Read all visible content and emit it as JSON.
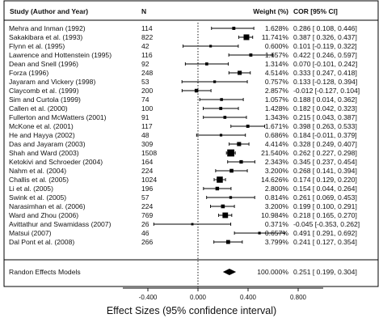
{
  "headers": {
    "study": "Study (Author and Year)",
    "n": "N",
    "weight": "Weight (%)",
    "cor": "COR [95% CI]"
  },
  "axis": {
    "xlabel": "Effect Sizes (95% confidence interval)",
    "ticks": [
      "-0.400",
      "0.000",
      "0.400",
      "0.800"
    ]
  },
  "chart_data": {
    "type": "forest",
    "xlim": [
      -0.6,
      1.0
    ],
    "xlabel": "Effect Sizes (95% confidence interval)",
    "grid": false,
    "reference_line": 0.0,
    "studies": [
      {
        "study": "Mehra and Inman (1992)",
        "n": "114",
        "weight": "1.628%",
        "ci_text": "0.286 [ 0.108, 0.446]",
        "cor": 0.286,
        "lo": 0.108,
        "hi": 0.446,
        "w": 1.628
      },
      {
        "study": "Sakakibara et al. (1993)",
        "n": "822",
        "weight": "11.741%",
        "ci_text": "0.387 [ 0.326, 0.437]",
        "cor": 0.387,
        "lo": 0.326,
        "hi": 0.437,
        "w": 11.741
      },
      {
        "study": "Flynn et al. (1995)",
        "n": "42",
        "weight": "0.600%",
        "ci_text": "0.101 [-0.119, 0.322]",
        "cor": 0.101,
        "lo": -0.119,
        "hi": 0.322,
        "w": 0.6
      },
      {
        "study": "Lawrence and Hottenstein (1995)",
        "n": "116",
        "weight": "1.657%",
        "ci_text": "0.422 [ 0.246, 0.597]",
        "cor": 0.422,
        "lo": 0.246,
        "hi": 0.597,
        "w": 1.657
      },
      {
        "study": "Dean and Snell (1996)",
        "n": "92",
        "weight": "1.314%",
        "ci_text": "0.070 [-0.101, 0.242]",
        "cor": 0.07,
        "lo": -0.101,
        "hi": 0.242,
        "w": 1.314
      },
      {
        "study": "Forza (1996)",
        "n": "248",
        "weight": "4.514%",
        "ci_text": "0.333 [ 0.247, 0.418]",
        "cor": 0.333,
        "lo": 0.247,
        "hi": 0.418,
        "w": 4.514
      },
      {
        "study": "Jayaram and Vickery (1998)",
        "n": "53",
        "weight": "0.757%",
        "ci_text": "0.133 [-0.128, 0.394]",
        "cor": 0.133,
        "lo": -0.128,
        "hi": 0.394,
        "w": 0.757
      },
      {
        "study": "Claycomb et al. (1999)",
        "n": "200",
        "weight": "2.857%",
        "ci_text": "-0.012 [-0.127, 0.104]",
        "cor": -0.012,
        "lo": -0.127,
        "hi": 0.104,
        "w": 2.857
      },
      {
        "study": "Sim and Curtola (1999)",
        "n": "74",
        "weight": "1.057%",
        "ci_text": "0.188 [ 0.014, 0.362]",
        "cor": 0.188,
        "lo": 0.014,
        "hi": 0.362,
        "w": 1.057
      },
      {
        "study": "Callen et al. (2000)",
        "n": "100",
        "weight": "1.428%",
        "ci_text": "0.182 [ 0.042, 0.323]",
        "cor": 0.182,
        "lo": 0.042,
        "hi": 0.323,
        "w": 1.428
      },
      {
        "study": "Fullerton and McWatters (2001)",
        "n": "91",
        "weight": "1.343%",
        "ci_text": "0.215 [ 0.043, 0.387]",
        "cor": 0.215,
        "lo": 0.043,
        "hi": 0.387,
        "w": 1.343
      },
      {
        "study": "McKone et al. (2001)",
        "n": "117",
        "weight": "1.671%",
        "ci_text": "0.398 [ 0.263, 0.533]",
        "cor": 0.398,
        "lo": 0.263,
        "hi": 0.533,
        "w": 1.671
      },
      {
        "study": "He and Hayya (2002)",
        "n": "48",
        "weight": "0.686%",
        "ci_text": "0.184 [-0.011, 0.379]",
        "cor": 0.184,
        "lo": -0.011,
        "hi": 0.379,
        "w": 0.686
      },
      {
        "study": "Das and Jayaram (2003)",
        "n": "309",
        "weight": "4.414%",
        "ci_text": "0.328 [ 0.249, 0.407]",
        "cor": 0.328,
        "lo": 0.249,
        "hi": 0.407,
        "w": 4.414
      },
      {
        "study": "Shah and Ward (2003)",
        "n": "1508",
        "weight": "21.540%",
        "ci_text": "0.262 [ 0.227, 0.298]",
        "cor": 0.262,
        "lo": 0.227,
        "hi": 0.298,
        "w": 21.54
      },
      {
        "study": "Ketokivi and Schroeder (2004)",
        "n": "164",
        "weight": "2.343%",
        "ci_text": "0.345 [ 0.237, 0.454]",
        "cor": 0.345,
        "lo": 0.237,
        "hi": 0.454,
        "w": 2.343
      },
      {
        "study": "Nahm et al. (2004)",
        "n": "224",
        "weight": "3.200%",
        "ci_text": "0.268 [ 0.141, 0.394]",
        "cor": 0.268,
        "lo": 0.141,
        "hi": 0.394,
        "w": 3.2
      },
      {
        "study": "Challis et al. (2005)",
        "n": "1024",
        "weight": "14.626%",
        "ci_text": "0.174 [ 0.129, 0.220]",
        "cor": 0.174,
        "lo": 0.129,
        "hi": 0.22,
        "w": 14.626
      },
      {
        "study": "Li et al. (2005)",
        "n": "196",
        "weight": "2.800%",
        "ci_text": "0.154 [ 0.044, 0.264]",
        "cor": 0.154,
        "lo": 0.044,
        "hi": 0.264,
        "w": 2.8
      },
      {
        "study": "Swink et al. (2005)",
        "n": "57",
        "weight": "0.814%",
        "ci_text": "0.261 [ 0.069, 0.453]",
        "cor": 0.261,
        "lo": 0.069,
        "hi": 0.453,
        "w": 0.814
      },
      {
        "study": "Narasimhan et al. (2006)",
        "n": "224",
        "weight": "3.200%",
        "ci_text": "0.199 [ 0.100, 0.291]",
        "cor": 0.199,
        "lo": 0.1,
        "hi": 0.291,
        "w": 3.2
      },
      {
        "study": "Ward and Zhou (2006)",
        "n": "769",
        "weight": "10.984%",
        "ci_text": "0.218 [ 0.165, 0.270]",
        "cor": 0.218,
        "lo": 0.165,
        "hi": 0.27,
        "w": 10.984
      },
      {
        "study": "Avittathur and Swamidass (2007)",
        "n": "26",
        "weight": "0.371%",
        "ci_text": "-0.045 [-0.353, 0.262]",
        "cor": -0.045,
        "lo": -0.353,
        "hi": 0.262,
        "w": 0.371
      },
      {
        "study": "Matsui (2007)",
        "n": "46",
        "weight": "0.657%",
        "ci_text": "0.491 [ 0.291, 0.692]",
        "cor": 0.491,
        "lo": 0.291,
        "hi": 0.692,
        "w": 0.657
      },
      {
        "study": "Dal Pont et al. (2008)",
        "n": "266",
        "weight": "3.799%",
        "ci_text": "0.241 [ 0.127, 0.354]",
        "cor": 0.241,
        "lo": 0.127,
        "hi": 0.354,
        "w": 3.799
      }
    ],
    "summary": {
      "label": "Randon Effects Models",
      "weight": "100.000%",
      "ci_text": "0.251 [ 0.199, 0.304]",
      "cor": 0.251,
      "lo": 0.199,
      "hi": 0.304
    }
  }
}
